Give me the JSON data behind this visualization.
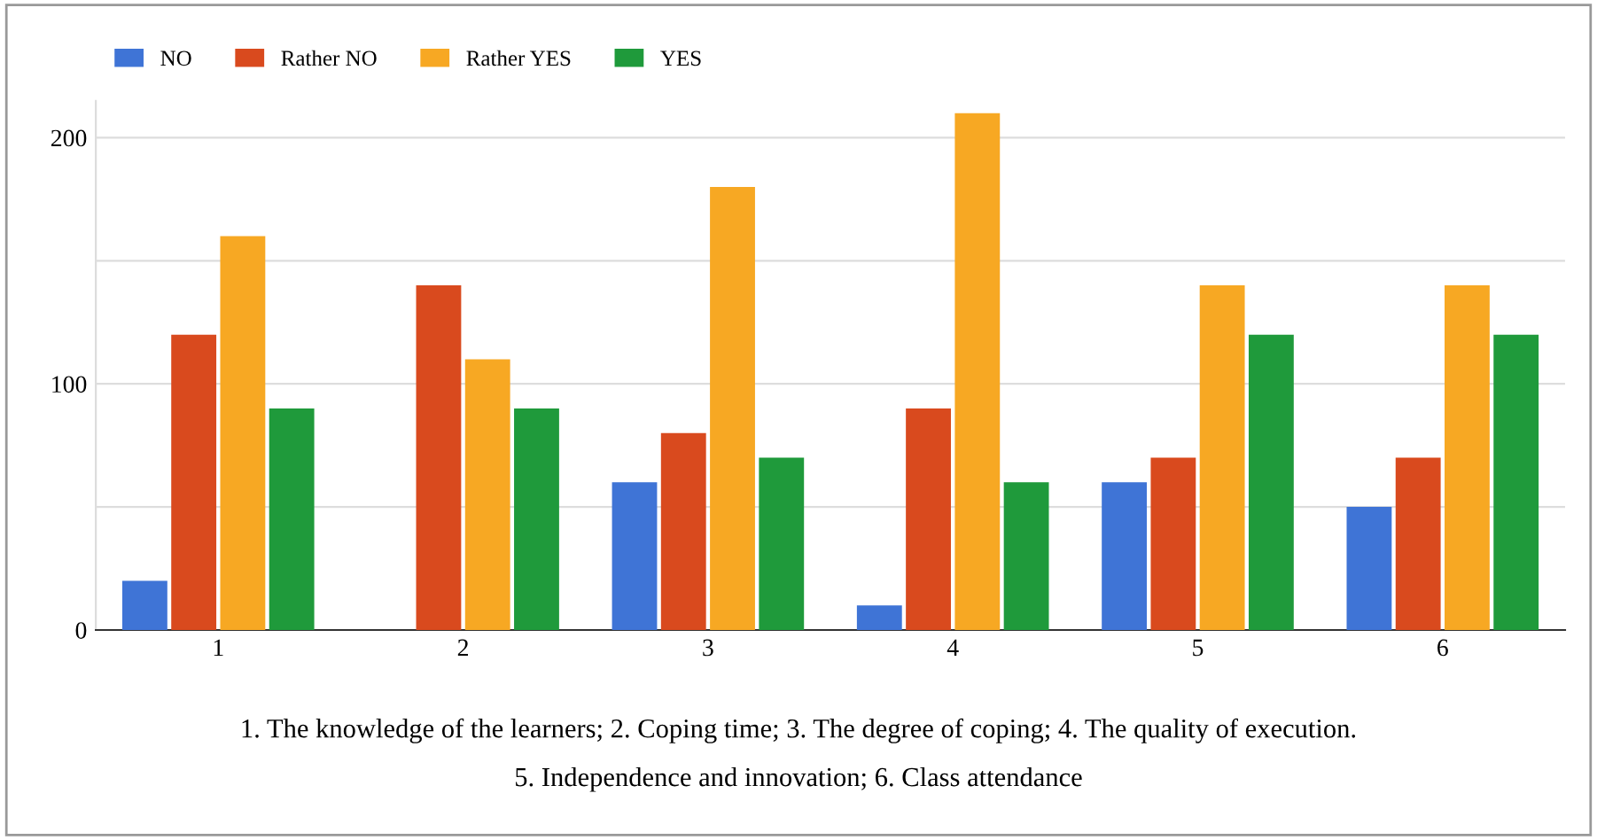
{
  "chart_data": {
    "type": "bar",
    "categories": [
      "1",
      "2",
      "3",
      "4",
      "5",
      "6"
    ],
    "series": [
      {
        "name": "NO",
        "color": "#3f74d6",
        "values": [
          20,
          0,
          60,
          10,
          60,
          50
        ]
      },
      {
        "name": "Rather NO",
        "color": "#d94a1e",
        "values": [
          120,
          140,
          80,
          90,
          70,
          70
        ]
      },
      {
        "name": "Rather YES",
        "color": "#f7a823",
        "values": [
          160,
          110,
          180,
          210,
          140,
          140
        ]
      },
      {
        "name": "YES",
        "color": "#1f9a3b",
        "values": [
          90,
          90,
          70,
          60,
          120,
          120
        ]
      }
    ],
    "ylim": [
      0,
      215
    ],
    "yticks": [
      0,
      {
        "value": 50,
        "label": null
      },
      100,
      {
        "value": 150,
        "label": null
      },
      200
    ],
    "grid": "y",
    "legend": "top left",
    "annotations": [
      "1. The knowledge of the learners; 2. Coping time; 3. The degree of coping; 4. The quality of execution.",
      "5. Independence and innovation; 6. Class attendance"
    ]
  }
}
